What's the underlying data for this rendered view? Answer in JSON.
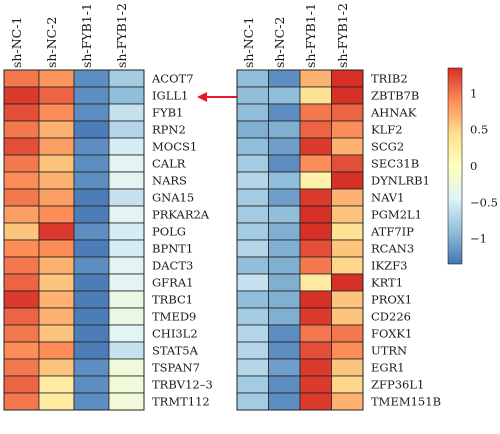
{
  "annotation_arrow_color": "#e8192c",
  "chart_data": [
    {
      "type": "heatmap",
      "columns": [
        "sh-NC-1",
        "sh-NC-2",
        "sh-FYB1-1",
        "sh-FYB1-2"
      ],
      "rows": [
        "ACOT7",
        "IGLL1",
        "FYB1",
        "RPN2",
        "MOCS1",
        "CALR",
        "NARS",
        "GNA15",
        "PRKAR2A",
        "POLG",
        "BPNT1",
        "DACT3",
        "GFRA1",
        "TRBC1",
        "TMED9",
        "CHI3L2",
        "STAT5A",
        "TSPAN7",
        "TRBV12–3",
        "TRMT112"
      ],
      "highlighted_row": "IGLL1",
      "values": [
        [
          1.0,
          0.85,
          -1.2,
          -0.8
        ],
        [
          1.3,
          1.1,
          -1.2,
          -0.9
        ],
        [
          1.2,
          0.9,
          -1.2,
          -0.6
        ],
        [
          1.0,
          0.7,
          -1.3,
          -0.7
        ],
        [
          1.2,
          0.8,
          -1.2,
          -0.5
        ],
        [
          1.0,
          0.6,
          -1.2,
          -0.4
        ],
        [
          0.9,
          0.7,
          -1.2,
          -0.4
        ],
        [
          1.0,
          0.8,
          -1.3,
          -0.6
        ],
        [
          0.8,
          0.9,
          -1.3,
          -0.4
        ],
        [
          0.6,
          1.3,
          -1.2,
          -0.5
        ],
        [
          0.9,
          0.9,
          -1.3,
          -0.5
        ],
        [
          1.0,
          0.7,
          -1.2,
          -0.4
        ],
        [
          1.1,
          0.6,
          -1.3,
          -0.4
        ],
        [
          1.3,
          0.7,
          -1.3,
          -0.3
        ],
        [
          1.1,
          0.7,
          -1.3,
          -0.3
        ],
        [
          1.0,
          0.6,
          -1.3,
          -0.4
        ],
        [
          0.9,
          0.9,
          -1.3,
          -0.6
        ],
        [
          1.0,
          0.6,
          -1.2,
          -0.2
        ],
        [
          1.1,
          0.3,
          -1.2,
          -0.2
        ],
        [
          1.0,
          0.3,
          -1.2,
          -0.2
        ]
      ]
    },
    {
      "type": "heatmap",
      "columns": [
        "sh-NC-1",
        "sh-NC-2",
        "sh-FYB1-1",
        "sh-FYB1-2"
      ],
      "rows": [
        "TRIB2",
        "ZBTB7B",
        "AHNAK",
        "KLF2",
        "SCG2",
        "SEC31B",
        "DYNLRB1",
        "NAV1",
        "PGM2L1",
        "ATF7IP",
        "RCAN3",
        "IKZF3",
        "KRT1",
        "PROX1",
        "CD226",
        "FOXK1",
        "UTRN",
        "EGR1",
        "ZFP36L1",
        "TMEM151B"
      ],
      "values": [
        [
          -0.9,
          -1.2,
          0.7,
          1.4
        ],
        [
          -0.9,
          -0.9,
          0.4,
          1.4
        ],
        [
          -0.9,
          -1.2,
          1.0,
          1.1
        ],
        [
          -1.0,
          -1.0,
          1.1,
          0.9
        ],
        [
          -0.9,
          -1.1,
          1.3,
          0.7
        ],
        [
          -0.8,
          -1.2,
          0.9,
          1.2
        ],
        [
          -0.7,
          -0.9,
          0.2,
          1.5
        ],
        [
          -0.8,
          -1.1,
          1.3,
          0.7
        ],
        [
          -0.8,
          -0.9,
          1.4,
          0.6
        ],
        [
          -0.8,
          -1.0,
          1.4,
          0.4
        ],
        [
          -0.7,
          -1.0,
          1.2,
          0.6
        ],
        [
          -0.9,
          -1.0,
          1.0,
          0.5
        ],
        [
          -0.6,
          -1.0,
          0.3,
          1.4
        ],
        [
          -0.9,
          -1.0,
          1.4,
          0.6
        ],
        [
          -0.8,
          -1.0,
          1.3,
          0.6
        ],
        [
          -0.7,
          -1.2,
          1.0,
          1.0
        ],
        [
          -0.7,
          -1.2,
          1.2,
          0.9
        ],
        [
          -0.7,
          -1.1,
          1.3,
          0.6
        ],
        [
          -0.8,
          -1.2,
          1.3,
          0.5
        ],
        [
          -0.8,
          -1.2,
          1.3,
          0.7
        ]
      ]
    }
  ],
  "colorbar": {
    "ticks": [
      1,
      0.5,
      0,
      -0.5,
      -1
    ],
    "tick_labels": [
      "1",
      "0.5",
      "0",
      "−0.5",
      "−1"
    ],
    "range": [
      -1.35,
      1.35
    ],
    "colors": [
      "#4575b4",
      "#91bfdb",
      "#e0f3f8",
      "#ffffbf",
      "#fee090",
      "#fc8d59",
      "#d73027"
    ]
  }
}
